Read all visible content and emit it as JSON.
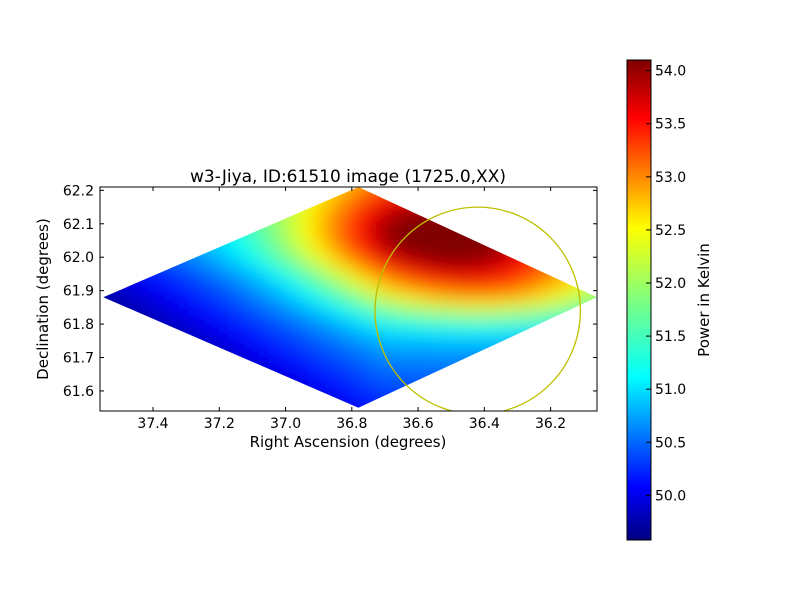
{
  "chart_data": {
    "type": "heatmap",
    "title": "w3-Jiya, ID:61510 image (1725.0,XX)",
    "xlabel": "Right Ascension (degrees)",
    "ylabel": "Declination (degrees)",
    "xlim": [
      37.56,
      36.06
    ],
    "ylim": [
      61.54,
      62.21
    ],
    "x_inverted": true,
    "x_ticks": [
      "37.4",
      "37.2",
      "37.0",
      "36.8",
      "36.6",
      "36.4",
      "36.2"
    ],
    "x_tick_values": [
      37.4,
      37.2,
      37.0,
      36.8,
      36.6,
      36.4,
      36.2
    ],
    "y_ticks": [
      "61.6",
      "61.7",
      "61.8",
      "61.9",
      "62.0",
      "62.1",
      "62.2"
    ],
    "y_tick_values": [
      61.6,
      61.7,
      61.8,
      61.9,
      62.0,
      62.1,
      62.2
    ],
    "data_region": {
      "shape": "diamond",
      "vertices_ra_dec": [
        [
          37.55,
          61.88
        ],
        [
          36.78,
          62.21
        ],
        [
          36.06,
          61.88
        ],
        [
          36.78,
          61.55
        ]
      ]
    },
    "hotspot": {
      "ra": 36.52,
      "dec": 62.06,
      "value": 54.1
    },
    "cold_edge_value": 49.6,
    "circle_overlay": {
      "ra": 36.42,
      "dec": 61.84,
      "radius_ra_deg": 0.31,
      "radius_dec_deg": 0.31,
      "color": "#bfbf00"
    },
    "colorbar": {
      "label": "Power in Kelvin",
      "range": [
        49.58,
        54.1
      ],
      "ticks": [
        "50.0",
        "50.5",
        "51.0",
        "51.5",
        "52.0",
        "52.5",
        "53.0",
        "53.5",
        "54.0"
      ],
      "tick_values": [
        50.0,
        50.5,
        51.0,
        51.5,
        52.0,
        52.5,
        53.0,
        53.5,
        54.0
      ],
      "colormap": "jet"
    },
    "grid": false,
    "legend": "none"
  }
}
